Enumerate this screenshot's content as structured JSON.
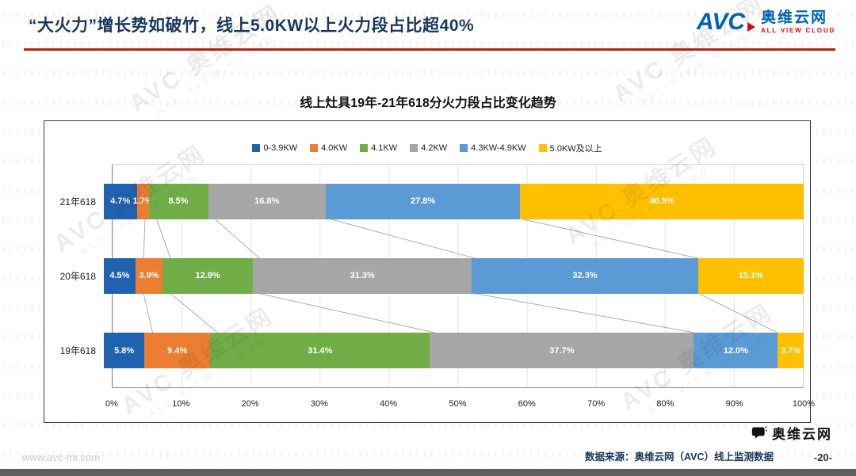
{
  "header": {
    "title": "“大火力”增长势如破竹，线上5.0KW以上火力段占比超40%",
    "logo": {
      "abbr": "AVC",
      "name": "奥维云网",
      "tagline": "ALL VIEW CLOUD"
    }
  },
  "colors": {
    "title_navy": "#17375E",
    "rule_red": "#B02418",
    "logo_blue": "#0063B1",
    "logo_red": "#E60012"
  },
  "chart_data": {
    "type": "bar",
    "subtype": "horizontal-stacked-100",
    "title": "线上灶具19年-21年618分火力段占比变化趋势",
    "categories": [
      "21年618",
      "20年618",
      "19年618"
    ],
    "series": [
      {
        "name": "0-3.9KW",
        "color": "#1F63B0",
        "values": [
          4.7,
          4.5,
          5.8
        ]
      },
      {
        "name": "4.0KW",
        "color": "#ED7D31",
        "values": [
          1.7,
          3.9,
          9.4
        ]
      },
      {
        "name": "4.1KW",
        "color": "#70AD47",
        "values": [
          8.5,
          12.9,
          31.4
        ]
      },
      {
        "name": "4.2KW",
        "color": "#A6A6A6",
        "values": [
          16.8,
          31.3,
          37.7
        ]
      },
      {
        "name": "4.3KW-4.9KW",
        "color": "#5B9BD5",
        "values": [
          27.8,
          32.3,
          12.0
        ]
      },
      {
        "name": "5.0KW及以上",
        "color": "#FFC000",
        "values": [
          40.5,
          15.1,
          3.7
        ]
      }
    ],
    "x_ticks": [
      "0%",
      "10%",
      "20%",
      "30%",
      "40%",
      "50%",
      "60%",
      "70%",
      "80%",
      "90%",
      "100%"
    ],
    "xlim": [
      0,
      100
    ],
    "legend_position": "top",
    "grid": true,
    "label_format": "percent_one_decimal"
  },
  "watermark": {
    "abbr": "AVC",
    "name": "奥维云网",
    "tagline": "ALL VIEW CLOUD"
  },
  "footer": {
    "url": "www.avc-mr.com",
    "source": "数据来源：奥维云网（AVC）线上监测数据",
    "page": "-20-",
    "wechat_label": "奥维云网"
  }
}
